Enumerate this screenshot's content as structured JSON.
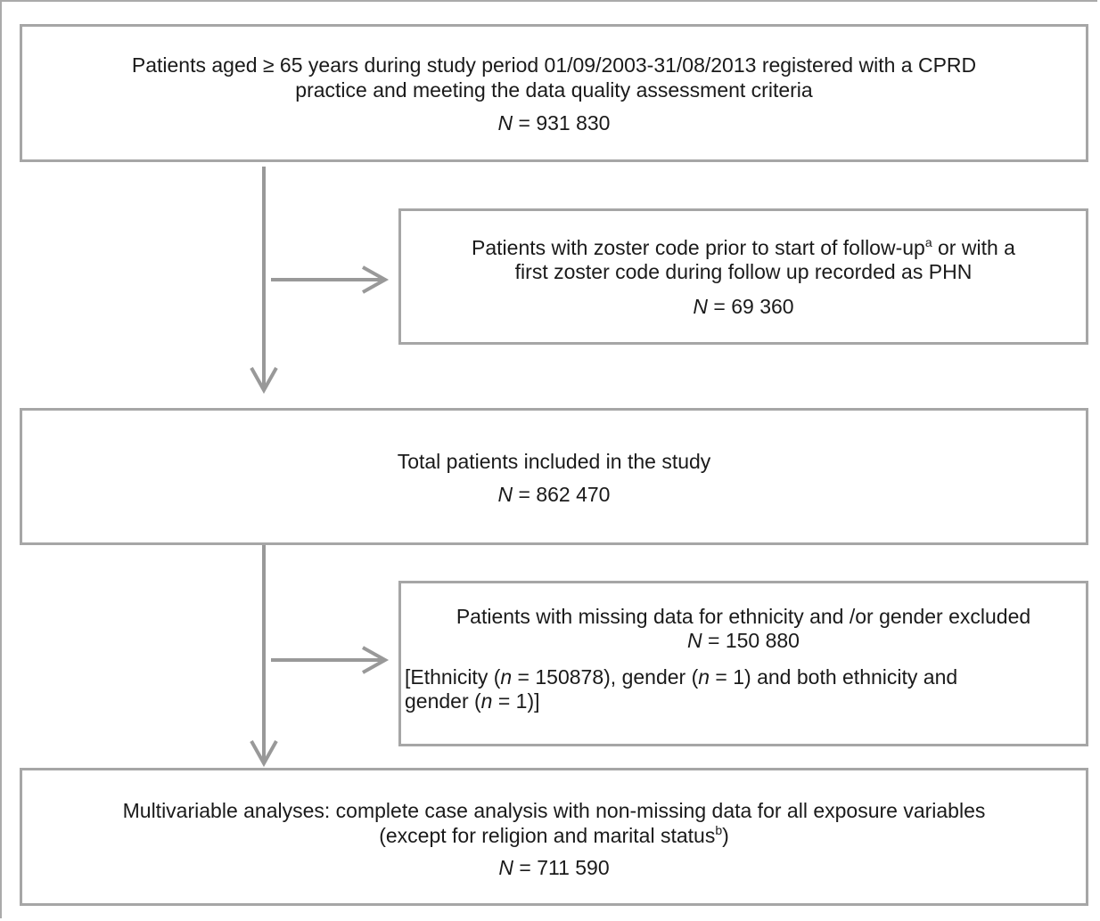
{
  "flowchart": {
    "box1": {
      "line1": "Patients aged ≥ 65 years during study period 01/09/2003-31/08/2013 registered with a CPRD",
      "line2": "practice and meeting the data quality assessment criteria",
      "n_label": "N",
      "n_value": " = 931 830"
    },
    "exclusion1": {
      "line1_pre": "Patients with zoster code prior to start of follow-up",
      "line1_sup": "a",
      "line1_post": " or with a",
      "line2": "first zoster code during follow up recorded as PHN",
      "n_label": "N",
      "n_value": " = 69 360"
    },
    "box2": {
      "line1": "Total patients included in the study",
      "n_label": "N",
      "n_value": " = 862 470"
    },
    "exclusion2": {
      "line1": "Patients with missing data for ethnicity and /or gender excluded",
      "n_label": "N",
      "n_value": " = 150 880",
      "detail_a": "[Ethnicity (",
      "detail_n1": "n",
      "detail_b": " = 150878), gender (",
      "detail_n2": "n",
      "detail_c": " = 1) and both ethnicity and",
      "detail_d": "gender (",
      "detail_n3": "n",
      "detail_e": " = 1)]"
    },
    "box3": {
      "line1": "Multivariable analyses: complete case analysis with non-missing data for all exposure variables",
      "line2_pre": "(except for religion and marital status",
      "line2_sup": "b",
      "line2_post": ")",
      "n_label": "N",
      "n_value": " = 711 590"
    },
    "colors": {
      "border": "#a6a6a6",
      "arrow": "#999999",
      "text": "#1a1a1a"
    }
  }
}
